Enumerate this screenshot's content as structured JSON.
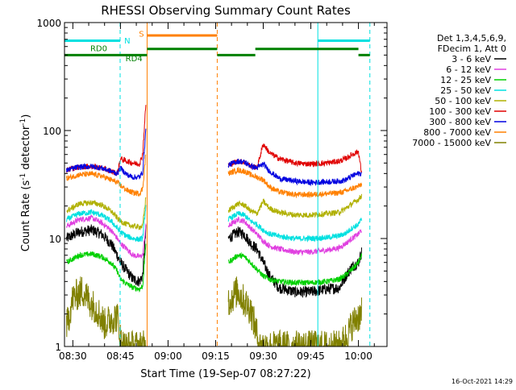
{
  "chart_data": {
    "type": "line",
    "title": "RHESSI Observing Summary Count Rates",
    "xlabel": "Start Time (19-Sep-07 08:27:22)",
    "ylabel": "Count Rate (s⁻¹ detector⁻¹)",
    "ylabel_main": "Count Rate (s",
    "ylabel_sup1": "-1",
    "ylabel_mid": " detector",
    "ylabel_sup2": "-1",
    "ylabel_end": ")",
    "yscale": "log",
    "ylim": [
      1,
      1000
    ],
    "xlim_minutes": [
      507.37,
      609.0
    ],
    "x_ticks": [
      {
        "label": "08:30",
        "minutes": 510
      },
      {
        "label": "08:45",
        "minutes": 525
      },
      {
        "label": "09:00",
        "minutes": 540
      },
      {
        "label": "09:15",
        "minutes": 555
      },
      {
        "label": "09:30",
        "minutes": 570
      },
      {
        "label": "09:45",
        "minutes": 585
      },
      {
        "label": "10:00",
        "minutes": 600
      }
    ],
    "y_ticks": [
      {
        "label": "1",
        "value": 1
      },
      {
        "label": "10",
        "value": 10
      },
      {
        "label": "100",
        "value": 100
      },
      {
        "label": "1000",
        "value": 1000
      }
    ],
    "legend_header": [
      "Det 1,3,4,5,6,9,",
      "FDecim 1, Att 0"
    ],
    "series": [
      {
        "name": "3 - 6 keV",
        "color": "#000000",
        "orbit1": [
          [
            508,
            10
          ],
          [
            512,
            11.5
          ],
          [
            516,
            12
          ],
          [
            519,
            11
          ],
          [
            522,
            9
          ],
          [
            524,
            7
          ],
          [
            525,
            6
          ],
          [
            527,
            5
          ],
          [
            529,
            4.2
          ],
          [
            531,
            4
          ],
          [
            532,
            4.5
          ],
          [
            533,
            12
          ]
        ],
        "orbit2": [
          [
            559,
            10
          ],
          [
            562,
            11.5
          ],
          [
            564,
            11
          ],
          [
            566,
            9
          ],
          [
            568,
            8
          ],
          [
            570,
            6
          ],
          [
            572,
            4.5
          ],
          [
            575,
            3.5
          ],
          [
            580,
            3.2
          ],
          [
            585,
            3.2
          ],
          [
            590,
            3.4
          ],
          [
            594,
            3.5
          ],
          [
            596,
            4.5
          ],
          [
            598,
            5.5
          ],
          [
            600,
            6
          ],
          [
            601,
            7.5
          ]
        ]
      },
      {
        "name": "6 - 12 keV",
        "color": "#e040e0",
        "orbit1": [
          [
            508,
            13
          ],
          [
            512,
            15
          ],
          [
            516,
            15.5
          ],
          [
            519,
            14
          ],
          [
            522,
            12
          ],
          [
            524,
            10
          ],
          [
            525,
            9
          ],
          [
            527,
            8
          ],
          [
            529,
            7
          ],
          [
            531,
            6.8
          ],
          [
            532,
            7
          ],
          [
            533,
            13
          ]
        ],
        "orbit2": [
          [
            559,
            13
          ],
          [
            562,
            15
          ],
          [
            564,
            14.5
          ],
          [
            566,
            12.5
          ],
          [
            568,
            11
          ],
          [
            570,
            9.5
          ],
          [
            572,
            8.5
          ],
          [
            575,
            8
          ],
          [
            580,
            7.5
          ],
          [
            585,
            7.5
          ],
          [
            590,
            7.8
          ],
          [
            594,
            8.2
          ],
          [
            596,
            9
          ],
          [
            598,
            10
          ],
          [
            600,
            11
          ],
          [
            601,
            12
          ]
        ]
      },
      {
        "name": "12 - 25 keV",
        "color": "#00d000",
        "orbit1": [
          [
            508,
            6
          ],
          [
            512,
            7
          ],
          [
            516,
            7.2
          ],
          [
            519,
            6.8
          ],
          [
            522,
            6
          ],
          [
            524,
            5
          ],
          [
            525,
            4.2
          ],
          [
            527,
            3.8
          ],
          [
            529,
            3.5
          ],
          [
            531,
            3.4
          ],
          [
            532,
            3.6
          ],
          [
            533,
            9
          ]
        ],
        "orbit2": [
          [
            559,
            6
          ],
          [
            562,
            7
          ],
          [
            564,
            6.8
          ],
          [
            566,
            6
          ],
          [
            568,
            5.2
          ],
          [
            570,
            4.5
          ],
          [
            572,
            4.2
          ],
          [
            575,
            4
          ],
          [
            580,
            3.9
          ],
          [
            585,
            3.9
          ],
          [
            590,
            4
          ],
          [
            594,
            4.2
          ],
          [
            596,
            4.6
          ],
          [
            598,
            5.2
          ],
          [
            600,
            6
          ],
          [
            601,
            7
          ]
        ]
      },
      {
        "name": "25 - 50 keV",
        "color": "#00e0e0",
        "orbit1": [
          [
            508,
            15
          ],
          [
            512,
            17
          ],
          [
            516,
            17.5
          ],
          [
            519,
            16.5
          ],
          [
            522,
            14.5
          ],
          [
            524,
            12.5
          ],
          [
            525,
            11.5
          ],
          [
            527,
            10.5
          ],
          [
            529,
            10
          ],
          [
            531,
            9.8
          ],
          [
            532,
            10
          ],
          [
            533,
            20
          ]
        ],
        "orbit2": [
          [
            559,
            15
          ],
          [
            562,
            17
          ],
          [
            564,
            16.5
          ],
          [
            566,
            14.5
          ],
          [
            568,
            13.5
          ],
          [
            570,
            12
          ],
          [
            572,
            11
          ],
          [
            575,
            10.5
          ],
          [
            580,
            10
          ],
          [
            585,
            10
          ],
          [
            590,
            10.2
          ],
          [
            594,
            10.6
          ],
          [
            596,
            11.2
          ],
          [
            598,
            12.5
          ],
          [
            600,
            13.5
          ],
          [
            601,
            15
          ]
        ]
      },
      {
        "name": "50 - 100 keV",
        "color": "#b0b000",
        "orbit1": [
          [
            508,
            18
          ],
          [
            512,
            21
          ],
          [
            516,
            21.5
          ],
          [
            519,
            20.5
          ],
          [
            522,
            18
          ],
          [
            524,
            15.5
          ],
          [
            525,
            14.5
          ],
          [
            527,
            13.5
          ],
          [
            529,
            13
          ],
          [
            531,
            12.8
          ],
          [
            532,
            13
          ],
          [
            533,
            24
          ]
        ],
        "orbit2": [
          [
            559,
            18
          ],
          [
            562,
            21
          ],
          [
            564,
            20.5
          ],
          [
            566,
            18
          ],
          [
            568,
            17
          ],
          [
            570,
            22
          ],
          [
            572,
            19
          ],
          [
            575,
            17.5
          ],
          [
            580,
            16.5
          ],
          [
            585,
            16.5
          ],
          [
            590,
            17
          ],
          [
            594,
            17.5
          ],
          [
            596,
            19
          ],
          [
            598,
            21
          ],
          [
            600,
            23
          ],
          [
            601,
            25
          ]
        ]
      },
      {
        "name": "100 - 300 keV",
        "color": "#e00000",
        "orbit1": [
          [
            508,
            43
          ],
          [
            512,
            46
          ],
          [
            516,
            46.5
          ],
          [
            519,
            45
          ],
          [
            522,
            42
          ],
          [
            524,
            40
          ],
          [
            525,
            55
          ],
          [
            527,
            52
          ],
          [
            529,
            50
          ],
          [
            531,
            49
          ],
          [
            532,
            60
          ],
          [
            533,
            175
          ]
        ],
        "orbit2": [
          [
            559,
            48
          ],
          [
            562,
            52
          ],
          [
            564,
            51
          ],
          [
            566,
            47
          ],
          [
            568,
            45
          ],
          [
            570,
            75
          ],
          [
            572,
            62
          ],
          [
            575,
            55
          ],
          [
            580,
            50
          ],
          [
            585,
            49
          ],
          [
            590,
            50
          ],
          [
            594,
            52
          ],
          [
            596,
            55
          ],
          [
            598,
            60
          ],
          [
            600,
            64
          ],
          [
            601,
            40
          ]
        ]
      },
      {
        "name": "300 - 800 keV",
        "color": "#0000e0",
        "orbit1": [
          [
            508,
            43
          ],
          [
            512,
            46
          ],
          [
            516,
            46.5
          ],
          [
            519,
            45
          ],
          [
            522,
            42
          ],
          [
            524,
            40
          ],
          [
            525,
            45
          ],
          [
            527,
            39
          ],
          [
            529,
            37
          ],
          [
            531,
            37
          ],
          [
            532,
            41
          ],
          [
            533,
            100
          ]
        ],
        "orbit2": [
          [
            559,
            48
          ],
          [
            562,
            52
          ],
          [
            564,
            51
          ],
          [
            566,
            47
          ],
          [
            568,
            45
          ],
          [
            570,
            49
          ],
          [
            572,
            42
          ],
          [
            575,
            36
          ],
          [
            580,
            34
          ],
          [
            585,
            33
          ],
          [
            590,
            33.5
          ],
          [
            594,
            34
          ],
          [
            596,
            35
          ],
          [
            598,
            38
          ],
          [
            600,
            40
          ],
          [
            601,
            40
          ]
        ]
      },
      {
        "name": "800 - 7000 keV",
        "color": "#ff8000",
        "orbit1": [
          [
            508,
            36
          ],
          [
            512,
            39
          ],
          [
            516,
            39.5
          ],
          [
            519,
            38
          ],
          [
            522,
            35
          ],
          [
            524,
            33
          ],
          [
            525,
            31
          ],
          [
            527,
            28
          ],
          [
            529,
            26.5
          ],
          [
            531,
            26
          ],
          [
            532,
            29
          ],
          [
            533,
            60
          ]
        ],
        "orbit2": [
          [
            559,
            40
          ],
          [
            562,
            43
          ],
          [
            564,
            42
          ],
          [
            566,
            39
          ],
          [
            568,
            37
          ],
          [
            570,
            35
          ],
          [
            572,
            30
          ],
          [
            575,
            27
          ],
          [
            580,
            25.5
          ],
          [
            585,
            25.5
          ],
          [
            590,
            26
          ],
          [
            594,
            26.5
          ],
          [
            596,
            27.5
          ],
          [
            598,
            29
          ],
          [
            600,
            30.5
          ],
          [
            601,
            32
          ]
        ]
      },
      {
        "name": "7000 - 15000 keV",
        "color": "#808000",
        "orbit1": [
          [
            508,
            1.5
          ],
          [
            510,
            2.8
          ],
          [
            513,
            3.3
          ],
          [
            515,
            2.7
          ],
          [
            518,
            2.1
          ],
          [
            520,
            1.6
          ],
          [
            522,
            1.8
          ],
          [
            524,
            1.9
          ],
          [
            525,
            1.2
          ],
          [
            526,
            1.0
          ],
          [
            529,
            1.0
          ],
          [
            533,
            1.0
          ]
        ],
        "orbit2": [
          [
            559,
            2.6
          ],
          [
            562,
            3.3
          ],
          [
            564,
            2.6
          ],
          [
            566,
            2.2
          ],
          [
            567,
            1.7
          ],
          [
            569,
            1.0
          ],
          [
            575,
            1.0
          ],
          [
            585,
            1.0
          ],
          [
            594,
            1.0
          ],
          [
            596,
            1.2
          ],
          [
            598,
            1.6
          ],
          [
            600,
            1.9
          ],
          [
            601,
            2.0
          ]
        ]
      }
    ],
    "vlines": [
      {
        "minutes": 507.37,
        "color": "#00e0e0",
        "dashed": false
      },
      {
        "minutes": 524.9,
        "color": "#00e0e0",
        "dashed": true
      },
      {
        "minutes": 533.4,
        "color": "#ff8000",
        "dashed": false
      },
      {
        "minutes": 555.5,
        "color": "#ff8000",
        "dashed": true
      },
      {
        "minutes": 587.2,
        "color": "#00e0e0",
        "dashed": false
      },
      {
        "minutes": 603.6,
        "color": "#00e0e0",
        "dashed": true
      }
    ],
    "bars": [
      {
        "label": "",
        "y": 680,
        "color": "#00e0e0",
        "segments": [
          [
            507.37,
            524.9
          ],
          [
            587.2,
            603.6
          ]
        ]
      },
      {
        "label": "",
        "y": 760,
        "color": "#ff8000",
        "segments": [
          [
            533.4,
            555.5
          ]
        ]
      },
      {
        "label": "",
        "y": 570,
        "color": "#008000",
        "segments": [
          [
            533.4,
            555.5
          ],
          [
            567.5,
            600
          ]
        ]
      },
      {
        "label": "",
        "y": 500,
        "color": "#008000",
        "segments": [
          [
            507.37,
            533.4
          ],
          [
            555.5,
            567.5
          ],
          [
            600,
            603.6
          ]
        ]
      }
    ],
    "annotations": [
      {
        "text": "RD0",
        "minutes": 515.5,
        "y": 580,
        "color": "#008000"
      },
      {
        "text": "N",
        "minutes": 526.2,
        "y": 685,
        "color": "#00e0e0"
      },
      {
        "text": "RD4",
        "minutes": 526.6,
        "y": 470,
        "color": "#008000"
      },
      {
        "text": "S",
        "minutes": 530.8,
        "y": 790,
        "color": "#ff8000"
      }
    ],
    "grid": false,
    "legend_position": "right"
  },
  "footer_timestamp": "16-Oct-2021 14:29"
}
